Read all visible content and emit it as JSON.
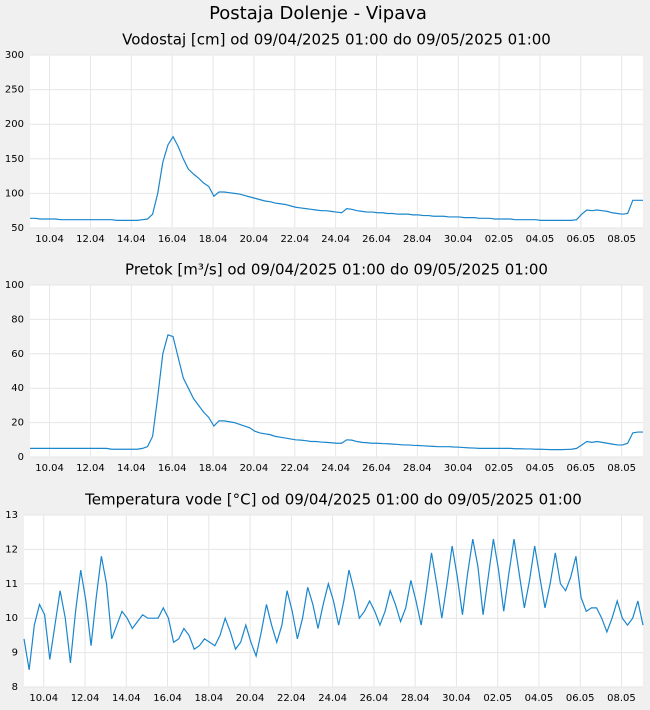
{
  "title": "Postaja Dolenje - Vipava",
  "chart_data": [
    {
      "type": "line",
      "title": "Vodostaj [cm] od 09/04/2025 01:00 do 09/05/2025 01:00",
      "color": "#1a86cc",
      "grid": true,
      "xlim": [
        0,
        120
      ],
      "xticks": [
        {
          "value": 3.83,
          "label": "10.04"
        },
        {
          "value": 11.83,
          "label": "12.04"
        },
        {
          "value": 19.83,
          "label": "14.04"
        },
        {
          "value": 27.83,
          "label": "16.04"
        },
        {
          "value": 35.83,
          "label": "18.04"
        },
        {
          "value": 43.83,
          "label": "20.04"
        },
        {
          "value": 51.83,
          "label": "22.04"
        },
        {
          "value": 59.83,
          "label": "24.04"
        },
        {
          "value": 67.83,
          "label": "26.04"
        },
        {
          "value": 75.83,
          "label": "28.04"
        },
        {
          "value": 83.83,
          "label": "30.04"
        },
        {
          "value": 91.83,
          "label": "02.05"
        },
        {
          "value": 99.83,
          "label": "04.05"
        },
        {
          "value": 107.83,
          "label": "06.05"
        },
        {
          "value": 115.83,
          "label": "08.05"
        }
      ],
      "ylim": [
        50,
        300
      ],
      "yticks": [
        50,
        100,
        150,
        200,
        250,
        300
      ],
      "values": [
        64,
        64,
        63,
        63,
        63,
        63,
        62,
        62,
        62,
        62,
        62,
        62,
        62,
        62,
        62,
        62,
        62,
        61,
        61,
        61,
        61,
        61,
        62,
        63,
        70,
        100,
        145,
        170,
        182,
        168,
        150,
        135,
        128,
        122,
        115,
        110,
        96,
        102,
        102,
        101,
        100,
        99,
        97,
        95,
        93,
        91,
        89,
        88,
        86,
        85,
        84,
        82,
        80,
        79,
        78,
        77,
        76,
        75,
        75,
        74,
        73,
        72,
        78,
        77,
        75,
        74,
        73,
        73,
        72,
        72,
        71,
        71,
        70,
        70,
        70,
        69,
        69,
        68,
        68,
        67,
        67,
        67,
        66,
        66,
        66,
        65,
        65,
        65,
        64,
        64,
        64,
        63,
        63,
        63,
        63,
        62,
        62,
        62,
        62,
        62,
        61,
        61,
        61,
        61,
        61,
        61,
        61,
        62,
        70,
        76,
        75,
        76,
        75,
        74,
        72,
        71,
        70,
        71,
        90,
        90,
        90
      ]
    },
    {
      "type": "line",
      "title": "Pretok [m³/s] od 09/04/2025 01:00 do 09/05/2025 01:00",
      "color": "#1a86cc",
      "grid": true,
      "xlim": [
        0,
        120
      ],
      "xticks": [
        {
          "value": 3.83,
          "label": "10.04"
        },
        {
          "value": 11.83,
          "label": "12.04"
        },
        {
          "value": 19.83,
          "label": "14.04"
        },
        {
          "value": 27.83,
          "label": "16.04"
        },
        {
          "value": 35.83,
          "label": "18.04"
        },
        {
          "value": 43.83,
          "label": "20.04"
        },
        {
          "value": 51.83,
          "label": "22.04"
        },
        {
          "value": 59.83,
          "label": "24.04"
        },
        {
          "value": 67.83,
          "label": "26.04"
        },
        {
          "value": 75.83,
          "label": "28.04"
        },
        {
          "value": 83.83,
          "label": "30.04"
        },
        {
          "value": 91.83,
          "label": "02.05"
        },
        {
          "value": 99.83,
          "label": "04.05"
        },
        {
          "value": 107.83,
          "label": "06.05"
        },
        {
          "value": 115.83,
          "label": "08.05"
        }
      ],
      "ylim": [
        0,
        100
      ],
      "yticks": [
        0,
        20,
        40,
        60,
        80,
        100
      ],
      "values": [
        5,
        5,
        5,
        5,
        5,
        5,
        5,
        5,
        5,
        5,
        5,
        5,
        5,
        5,
        5,
        5,
        4.5,
        4.5,
        4.5,
        4.5,
        4.5,
        4.5,
        5,
        6,
        12,
        35,
        60,
        71,
        70,
        58,
        46,
        40,
        34,
        30,
        26,
        23,
        18,
        21,
        21,
        20.5,
        20,
        19,
        18,
        17,
        15,
        14,
        13.5,
        13,
        12,
        11.5,
        11,
        10.5,
        10,
        9.8,
        9.5,
        9,
        9,
        8.7,
        8.5,
        8.3,
        8,
        8,
        10,
        9.8,
        9,
        8.5,
        8.3,
        8,
        8,
        7.8,
        7.7,
        7.5,
        7.3,
        7,
        7,
        6.8,
        6.7,
        6.5,
        6.3,
        6.2,
        6,
        6,
        6,
        5.8,
        5.7,
        5.5,
        5.3,
        5.2,
        5,
        5,
        5,
        5,
        5,
        5,
        5,
        4.8,
        4.8,
        4.7,
        4.7,
        4.5,
        4.5,
        4.4,
        4.3,
        4.3,
        4.3,
        4.4,
        4.5,
        5,
        7,
        9,
        8.5,
        9,
        8.5,
        8,
        7.5,
        7,
        7,
        8,
        14,
        14.5,
        14.5
      ]
    },
    {
      "type": "line",
      "title": "Temperatura vode [°C] od 09/04/2025 01:00 do 09/05/2025 01:00",
      "color": "#1a86cc",
      "grid": true,
      "xlim": [
        0,
        120
      ],
      "xticks": [
        {
          "value": 3.83,
          "label": "10.04"
        },
        {
          "value": 11.83,
          "label": "12.04"
        },
        {
          "value": 19.83,
          "label": "14.04"
        },
        {
          "value": 27.83,
          "label": "16.04"
        },
        {
          "value": 35.83,
          "label": "18.04"
        },
        {
          "value": 43.83,
          "label": "20.04"
        },
        {
          "value": 51.83,
          "label": "22.04"
        },
        {
          "value": 59.83,
          "label": "24.04"
        },
        {
          "value": 67.83,
          "label": "26.04"
        },
        {
          "value": 75.83,
          "label": "28.04"
        },
        {
          "value": 83.83,
          "label": "30.04"
        },
        {
          "value": 91.83,
          "label": "02.05"
        },
        {
          "value": 99.83,
          "label": "04.05"
        },
        {
          "value": 107.83,
          "label": "06.05"
        },
        {
          "value": 115.83,
          "label": "08.05"
        }
      ],
      "ylim": [
        8,
        13
      ],
      "yticks": [
        8,
        9,
        10,
        11,
        12,
        13
      ],
      "values": [
        9.4,
        8.5,
        9.8,
        10.4,
        10.1,
        8.8,
        9.8,
        10.8,
        10.0,
        8.7,
        10.2,
        11.4,
        10.5,
        9.2,
        10.6,
        11.8,
        11.0,
        9.4,
        9.8,
        10.2,
        10.0,
        9.7,
        9.9,
        10.1,
        10.0,
        10.0,
        10.0,
        10.3,
        10.0,
        9.3,
        9.4,
        9.7,
        9.5,
        9.1,
        9.2,
        9.4,
        9.3,
        9.2,
        9.5,
        10.0,
        9.6,
        9.1,
        9.3,
        9.8,
        9.3,
        8.9,
        9.6,
        10.4,
        9.8,
        9.3,
        9.8,
        10.8,
        10.2,
        9.4,
        10.0,
        10.9,
        10.4,
        9.7,
        10.4,
        11.0,
        10.5,
        9.8,
        10.5,
        11.4,
        10.8,
        10.0,
        10.2,
        10.5,
        10.2,
        9.8,
        10.2,
        10.8,
        10.4,
        9.9,
        10.3,
        11.1,
        10.5,
        9.8,
        10.8,
        11.9,
        11.0,
        10.0,
        11.0,
        12.1,
        11.2,
        10.1,
        11.3,
        12.3,
        11.5,
        10.1,
        11.2,
        12.3,
        11.4,
        10.2,
        11.3,
        12.3,
        11.3,
        10.3,
        11.1,
        12.1,
        11.2,
        10.3,
        11.0,
        11.9,
        11.0,
        10.8,
        11.2,
        11.8,
        10.6,
        10.2,
        10.3,
        10.3,
        10.0,
        9.6,
        10.0,
        10.5,
        10.0,
        9.8,
        10.0,
        10.5,
        9.8
      ]
    }
  ]
}
